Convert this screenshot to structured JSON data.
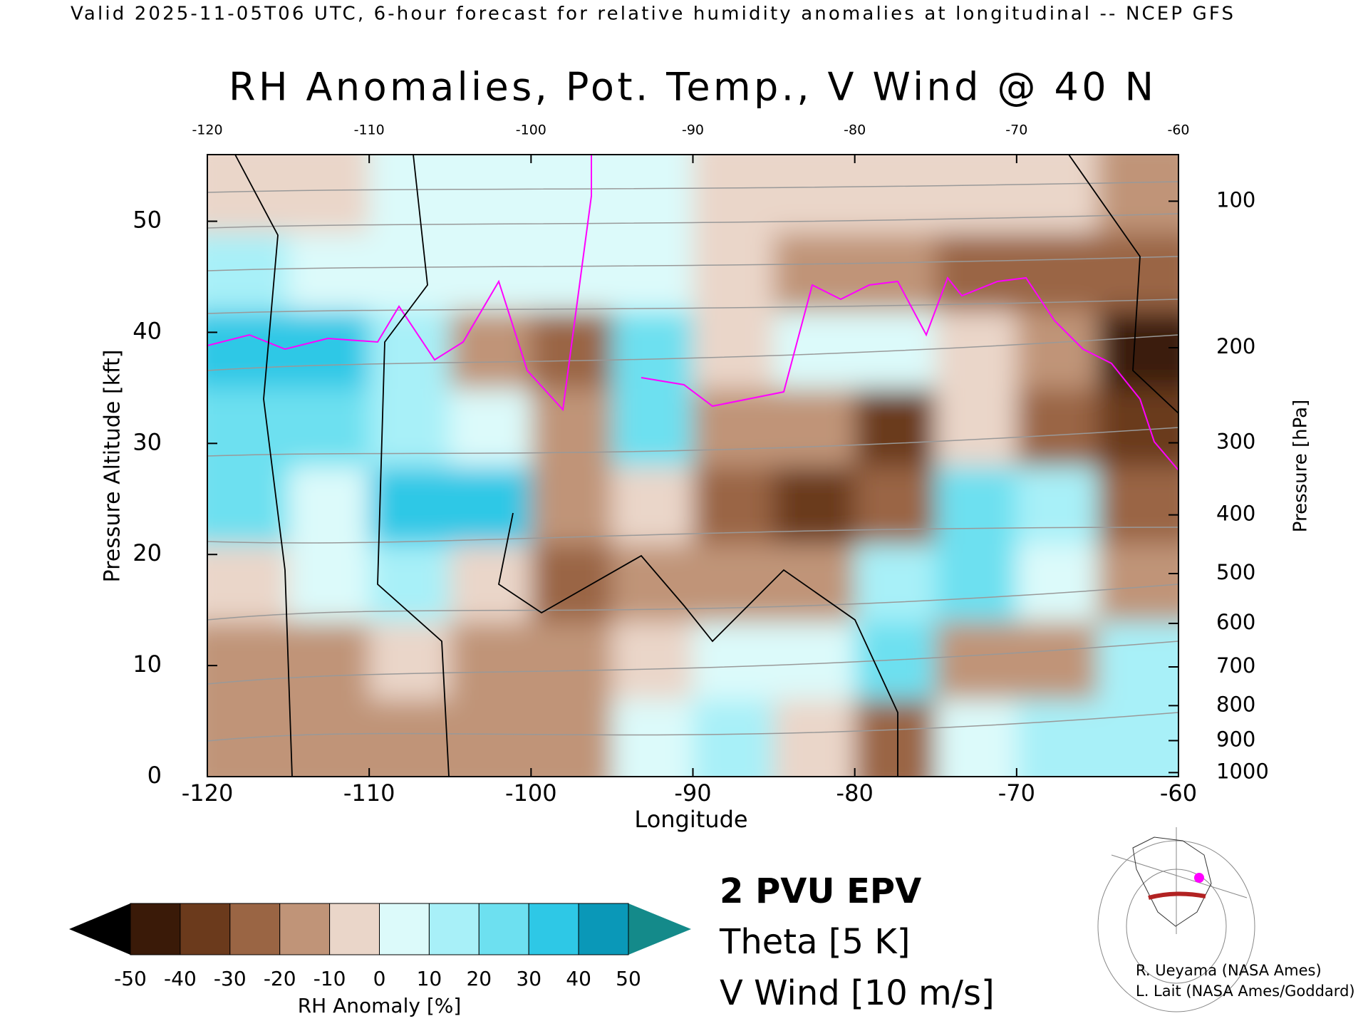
{
  "header": "Valid 2025-11-05T06 UTC, 6-hour forecast for relative humidity anomalies at longitudinal -- NCEP GFS",
  "chart_data": {
    "type": "heatmap",
    "title": "RH Anomalies, Pot. Temp., V Wind @ 40 N",
    "x_label": "Longitude",
    "y_label": "Pressure Altitude [kft]",
    "y2_label": "Pressure [hPa]",
    "xlim": [
      -120,
      -60
    ],
    "xticks": [
      -120,
      -110,
      -100,
      -90,
      -80,
      -70,
      -60
    ],
    "ylim": [
      0,
      56
    ],
    "yticks": [
      0,
      10,
      20,
      30,
      40,
      50
    ],
    "y2lim": [
      1013,
      81
    ],
    "y2ticks": [
      100,
      200,
      300,
      400,
      500,
      600,
      700,
      800,
      900,
      1000
    ],
    "lon_edges": [
      -120,
      -115,
      -110,
      -105,
      -100,
      -95,
      -90,
      -85,
      -80,
      -75,
      -70,
      -65,
      -60
    ],
    "alt_edges": [
      0,
      7,
      14,
      21,
      28,
      35,
      42,
      49,
      56
    ],
    "rh_anomaly": [
      [
        -10,
        -10,
        -10,
        -15,
        -10,
        10,
        15,
        -5,
        -20,
        10,
        20,
        20
      ],
      [
        -10,
        -10,
        -5,
        -10,
        -15,
        -5,
        10,
        5,
        30,
        -10,
        -15,
        20
      ],
      [
        0,
        5,
        20,
        0,
        -20,
        -15,
        -15,
        -10,
        20,
        30,
        10,
        -10
      ],
      [
        30,
        10,
        40,
        35,
        -10,
        -5,
        -20,
        -30,
        -20,
        25,
        15,
        -20
      ],
      [
        30,
        30,
        20,
        10,
        -15,
        30,
        -10,
        -15,
        -30,
        -5,
        -20,
        -30
      ],
      [
        40,
        40,
        20,
        -10,
        -20,
        25,
        0,
        10,
        10,
        -5,
        -15,
        -40
      ],
      [
        20,
        10,
        5,
        10,
        10,
        5,
        0,
        -10,
        -15,
        -20,
        -20,
        -25
      ],
      [
        0,
        0,
        2,
        5,
        5,
        3,
        0,
        -5,
        -5,
        -5,
        -5,
        -10
      ]
    ],
    "colorbar": {
      "label": "RH Anomaly [%]",
      "bounds": [
        -50,
        -40,
        -30,
        -20,
        -10,
        0,
        10,
        20,
        30,
        40,
        50
      ],
      "colors": [
        "#3a1a08",
        "#6b3a1c",
        "#9a6544",
        "#c09478",
        "#ead6c9",
        "#dcfafa",
        "#a8f0f8",
        "#6de0f0",
        "#2ec8e6",
        "#0a98b8"
      ],
      "under": "#000000",
      "over": "#148a8a"
    },
    "legend": [
      {
        "name": "2 PVU EPV",
        "color": "#ff00ff"
      },
      {
        "name": "Theta [5 K]",
        "color": "#aaaaaa"
      },
      {
        "name": "V Wind [10 m/s]",
        "color": "#000000"
      }
    ]
  },
  "credits": [
    "R. Ueyama (NASA Ames)",
    "L. Lait (NASA Ames/Goddard)"
  ]
}
